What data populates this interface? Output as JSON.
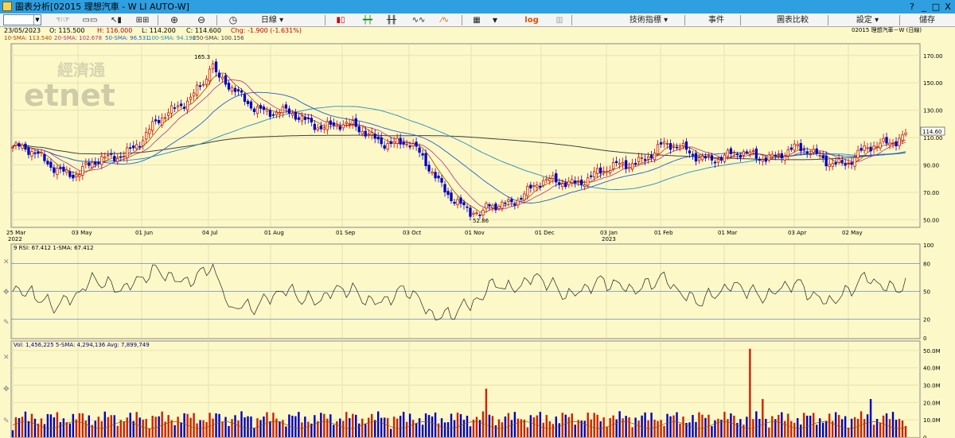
{
  "window": {
    "title": "圖表分析[02015 理想汽車 - W LI AUTO-W]",
    "controls": [
      "?",
      "_",
      "□",
      "X"
    ]
  },
  "toolbar": {
    "period_label": "日線",
    "technical_label": "技術指標",
    "events_label": "事件",
    "compare_label": "圖表比較",
    "settings_label": "設定",
    "save_label": "儲存",
    "log_label": "log"
  },
  "info": {
    "date": "23/05/2023",
    "open": "O: 115.500",
    "high": "H: 116.000",
    "low": "L: 114.200",
    "close": "C: 114.600",
    "change": "Chg: -1.900 (-1.631%)",
    "right_label": "02015 理想汽車－W (日線)"
  },
  "sma_legend": [
    {
      "label": "10-SMA: 113.540",
      "color": "#b04000"
    },
    {
      "label": "20-SMA: 102.678",
      "color": "#b03080"
    },
    {
      "label": "50-SMA: 96.531",
      "color": "#2060d0"
    },
    {
      "label": "100-SMA: 94.196",
      "color": "#2090c0"
    },
    {
      "label": "250-SMA: 100.156",
      "color": "#404040"
    }
  ],
  "watermark": {
    "top": "經濟通",
    "bottom": "etnet"
  },
  "price_panel": {
    "yaxis": [
      170,
      150,
      130,
      110,
      90,
      70,
      50
    ],
    "ylim": [
      45,
      178
    ],
    "ylabels": [
      "170.00",
      "150.00",
      "130.00",
      "110.00",
      "90.00",
      "70.00",
      "50.00"
    ],
    "high_annotation": "165.3",
    "low_annotation": "52.86",
    "last_price_tag": "114.60"
  },
  "xaxis": [
    {
      "label": "25 Mar",
      "sub": "2022"
    },
    {
      "label": "03 May",
      "sub": ""
    },
    {
      "label": "01 Jun",
      "sub": ""
    },
    {
      "label": "04 Jul",
      "sub": ""
    },
    {
      "label": "01 Aug",
      "sub": ""
    },
    {
      "label": "01 Sep",
      "sub": ""
    },
    {
      "label": "03 Oct",
      "sub": ""
    },
    {
      "label": "01 Nov",
      "sub": ""
    },
    {
      "label": "01 Dec",
      "sub": ""
    },
    {
      "label": "03 Jan",
      "sub": "2023"
    },
    {
      "label": "01 Feb",
      "sub": ""
    },
    {
      "label": "01 Mar",
      "sub": ""
    },
    {
      "label": "03 Apr",
      "sub": ""
    },
    {
      "label": "02 May",
      "sub": ""
    }
  ],
  "rsi_panel": {
    "legend": "9 RSI: 67.412  1-SMA: 67.412",
    "yaxis": [
      100,
      80,
      50,
      20,
      0
    ],
    "ylabels": [
      "100",
      "80",
      "50",
      "20",
      "0"
    ]
  },
  "vol_panel": {
    "legend": "Vol: 1,456,225  5-SMA: 4,294,136  Avg: 7,899,749",
    "yaxis": [
      50,
      40,
      30,
      20,
      10,
      0
    ],
    "ylabels": [
      "50.0M",
      "40.0M",
      "30.0M",
      "20.0M",
      "10.0M",
      "0"
    ]
  },
  "chart_data": {
    "type": "line",
    "title": "",
    "series": [
      {
        "name": "",
        "x": [
          "25 Mar 2022",
          "03 May",
          "01 Jun",
          "04 Jul",
          "01 Aug",
          "01 Sep",
          "03 Oct",
          "01 Nov",
          "01 Dec",
          "03 Jan 2023",
          "01 Feb",
          "01 Mar",
          "03 Apr",
          "02 May",
          "23 May"
        ],
        "values": [
          103,
          83,
          108,
          155,
          128,
          118,
          104,
          53,
          75,
          84,
          103,
          95,
          100,
          92,
          114.6
        ]
      }
    ]
  }
}
